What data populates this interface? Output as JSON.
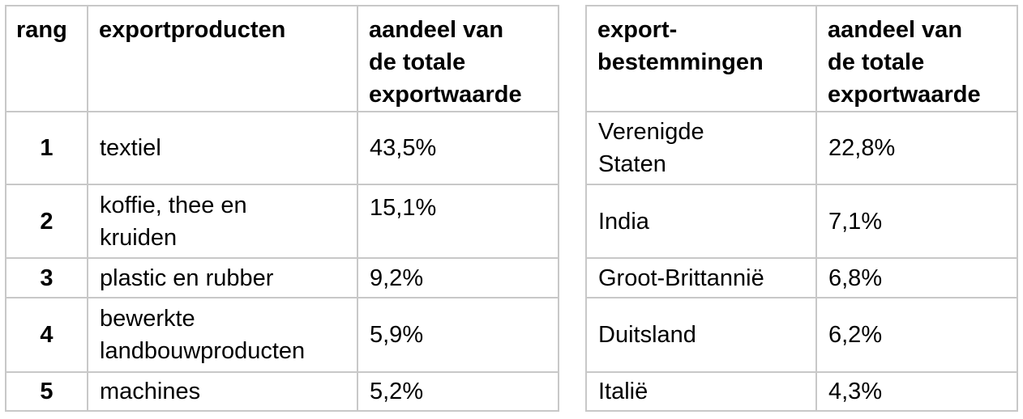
{
  "products_table": {
    "headers": {
      "rank": "rang",
      "product": "exportproducten",
      "share_line1": "aandeel van",
      "share_line2": "de totale",
      "share_line3": "exportwaarde"
    },
    "rows": [
      {
        "rank": "1",
        "product_line1": "textiel",
        "product_line2": "",
        "share": "43,5%"
      },
      {
        "rank": "2",
        "product_line1": "koffie, thee en",
        "product_line2": "kruiden",
        "share": "15,1%"
      },
      {
        "rank": "3",
        "product_line1": "plastic en rubber",
        "product_line2": "",
        "share": "9,2%"
      },
      {
        "rank": "4",
        "product_line1": "bewerkte",
        "product_line2": "landbouwproducten",
        "share": "5,9%"
      },
      {
        "rank": "5",
        "product_line1": "machines",
        "product_line2": "",
        "share": "5,2%"
      }
    ]
  },
  "destinations_table": {
    "headers": {
      "destination_line1": "export-",
      "destination_line2": "bestemmingen",
      "share_line1": "aandeel van",
      "share_line2": "de totale",
      "share_line3": "exportwaarde"
    },
    "rows": [
      {
        "destination_line1": "Verenigde",
        "destination_line2": "Staten",
        "share": "22,8%"
      },
      {
        "destination_line1": "India",
        "destination_line2": "",
        "share": "7,1%"
      },
      {
        "destination_line1": "Groot-Brittannië",
        "destination_line2": "",
        "share": "6,8%"
      },
      {
        "destination_line1": "Duitsland",
        "destination_line2": "",
        "share": "6,2%"
      },
      {
        "destination_line1": "Italië",
        "destination_line2": "",
        "share": "4,3%"
      }
    ]
  }
}
